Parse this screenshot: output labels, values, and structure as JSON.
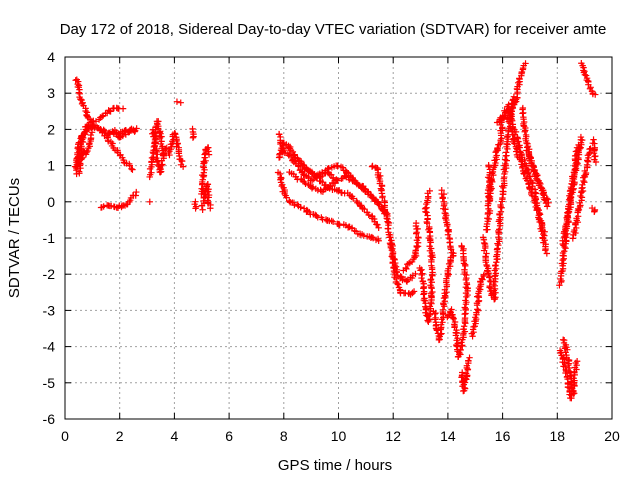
{
  "chart_data": {
    "type": "scatter",
    "title": "Day 172 of 2018, Sidereal Day-to-day VTEC variation (SDTVAR) for receiver amte",
    "xlabel": "GPS time / hours",
    "ylabel": "SDTVAR / TECUs",
    "xlim": [
      0,
      20
    ],
    "ylim": [
      -6,
      4
    ],
    "xticks": [
      "0",
      "2",
      "4",
      "6",
      "8",
      "10",
      "12",
      "14",
      "16",
      "18",
      "20"
    ],
    "yticks": [
      "-6",
      "-5",
      "-4",
      "-3",
      "-2",
      "-1",
      "0",
      "1",
      "2",
      "3",
      "4"
    ],
    "grid": true,
    "marker": "+",
    "color": "#ff0000",
    "series_tracks": [
      [
        [
          0.4,
          3.4
        ],
        [
          0.5,
          3.2
        ],
        [
          0.6,
          2.8
        ],
        [
          0.8,
          2.4
        ],
        [
          1.0,
          2.1
        ],
        [
          1.3,
          2.0
        ],
        [
          1.6,
          1.9
        ],
        [
          2.0,
          1.8
        ],
        [
          2.3,
          1.9
        ],
        [
          2.6,
          2.0
        ]
      ],
      [
        [
          0.4,
          1.0
        ],
        [
          0.5,
          1.5
        ],
        [
          0.6,
          1.8
        ],
        [
          0.8,
          2.0
        ],
        [
          1.0,
          2.1
        ],
        [
          1.3,
          2.0
        ],
        [
          1.6,
          1.7
        ],
        [
          1.9,
          1.4
        ],
        [
          2.2,
          1.1
        ],
        [
          2.5,
          0.9
        ]
      ],
      [
        [
          0.4,
          0.8
        ],
        [
          0.5,
          1.2
        ],
        [
          0.6,
          1.6
        ],
        [
          0.8,
          2.1
        ],
        [
          1.0,
          2.2
        ],
        [
          1.3,
          2.3
        ],
        [
          1.6,
          2.5
        ],
        [
          1.9,
          2.6
        ],
        [
          2.1,
          2.6
        ]
      ],
      [
        [
          0.5,
          0.8
        ],
        [
          0.6,
          1.2
        ],
        [
          0.7,
          1.4
        ],
        [
          0.8,
          1.3
        ],
        [
          0.9,
          1.6
        ],
        [
          1.0,
          1.9
        ]
      ],
      [
        [
          1.3,
          -0.15
        ],
        [
          1.6,
          -0.12
        ],
        [
          1.9,
          -0.15
        ],
        [
          2.1,
          -0.12
        ],
        [
          2.3,
          -0.05
        ],
        [
          2.5,
          0.15
        ],
        [
          2.6,
          0.25
        ]
      ],
      [
        [
          1.6,
          1.9
        ],
        [
          1.8,
          1.95
        ],
        [
          2.0,
          1.9
        ],
        [
          2.2,
          1.95
        ],
        [
          2.4,
          2.0
        ],
        [
          2.6,
          1.95
        ]
      ],
      [
        [
          3.1,
          0.7
        ],
        [
          3.2,
          1.2
        ],
        [
          3.3,
          1.8
        ],
        [
          3.4,
          2.2
        ],
        [
          3.5,
          1.8
        ],
        [
          3.6,
          1.3
        ]
      ],
      [
        [
          3.2,
          2.0
        ],
        [
          3.3,
          1.6
        ],
        [
          3.4,
          1.1
        ],
        [
          3.5,
          0.8
        ],
        [
          3.6,
          1.3
        ],
        [
          3.7,
          1.5
        ]
      ],
      [
        [
          3.8,
          1.3
        ],
        [
          3.9,
          1.6
        ],
        [
          4.0,
          1.9
        ],
        [
          4.1,
          1.6
        ],
        [
          4.2,
          1.2
        ],
        [
          4.3,
          1.0
        ]
      ],
      [
        [
          3.1,
          0.0
        ],
        [
          4.1,
          2.75
        ],
        [
          4.2,
          2.75
        ]
      ],
      [
        [
          4.7,
          2.0
        ],
        [
          4.7,
          1.8
        ],
        [
          4.75,
          0.0
        ],
        [
          4.8,
          -0.2
        ]
      ],
      [
        [
          5.0,
          0.2
        ],
        [
          5.05,
          0.7
        ],
        [
          5.1,
          1.1
        ],
        [
          5.15,
          1.4
        ],
        [
          5.2,
          1.5
        ],
        [
          5.25,
          1.3
        ]
      ],
      [
        [
          5.0,
          -0.2
        ],
        [
          5.1,
          0.1
        ],
        [
          5.2,
          0.5
        ],
        [
          5.25,
          0.0
        ],
        [
          5.3,
          -0.15
        ]
      ],
      [
        [
          7.8,
          1.9
        ],
        [
          7.9,
          1.6
        ],
        [
          8.0,
          1.4
        ],
        [
          8.2,
          1.3
        ],
        [
          8.4,
          1.1
        ],
        [
          8.6,
          0.9
        ],
        [
          8.8,
          0.7
        ],
        [
          9.0,
          0.6
        ],
        [
          9.3,
          0.7
        ],
        [
          9.6,
          0.8
        ],
        [
          9.9,
          0.6
        ]
      ],
      [
        [
          7.8,
          1.2
        ],
        [
          7.9,
          1.4
        ],
        [
          8.0,
          1.6
        ],
        [
          8.2,
          1.5
        ],
        [
          8.4,
          1.3
        ],
        [
          8.7,
          1.0
        ],
        [
          9.0,
          0.8
        ],
        [
          9.3,
          0.6
        ],
        [
          9.6,
          0.4
        ],
        [
          10.0,
          0.3
        ],
        [
          10.4,
          0.2
        ],
        [
          10.8,
          -0.1
        ],
        [
          11.2,
          -0.4
        ],
        [
          11.5,
          -0.7
        ]
      ],
      [
        [
          7.8,
          0.8
        ],
        [
          7.9,
          0.6
        ],
        [
          8.0,
          0.3
        ],
        [
          8.2,
          0.0
        ],
        [
          8.5,
          -0.1
        ],
        [
          8.8,
          -0.25
        ],
        [
          9.2,
          -0.4
        ],
        [
          9.6,
          -0.5
        ],
        [
          10.0,
          -0.6
        ],
        [
          10.4,
          -0.7
        ],
        [
          10.8,
          -0.9
        ],
        [
          11.2,
          -1.0
        ],
        [
          11.5,
          -1.05
        ]
      ],
      [
        [
          8.5,
          1.2
        ],
        [
          8.8,
          0.9
        ],
        [
          9.2,
          0.7
        ],
        [
          9.6,
          0.9
        ],
        [
          10.0,
          1.0
        ],
        [
          10.3,
          0.8
        ],
        [
          10.6,
          0.6
        ],
        [
          11.0,
          0.3
        ],
        [
          11.4,
          0.0
        ],
        [
          11.7,
          -0.3
        ]
      ],
      [
        [
          8.2,
          0.8
        ],
        [
          8.6,
          0.6
        ],
        [
          9.0,
          0.4
        ],
        [
          9.4,
          0.3
        ],
        [
          9.8,
          0.5
        ],
        [
          10.2,
          0.7
        ],
        [
          10.5,
          0.6
        ],
        [
          10.9,
          0.4
        ],
        [
          11.3,
          0.1
        ],
        [
          11.6,
          -0.2
        ],
        [
          11.8,
          -0.4
        ]
      ],
      [
        [
          11.2,
          1.0
        ],
        [
          11.4,
          0.95
        ],
        [
          11.5,
          0.7
        ],
        [
          11.6,
          0.3
        ],
        [
          11.7,
          -0.2
        ],
        [
          11.8,
          -0.6
        ],
        [
          11.9,
          -1.0
        ],
        [
          12.0,
          -1.5
        ],
        [
          12.1,
          -1.9
        ],
        [
          12.3,
          -2.1
        ],
        [
          12.5,
          -2.2
        ],
        [
          12.8,
          -2.0
        ]
      ],
      [
        [
          11.9,
          -1.0
        ],
        [
          12.0,
          -1.6
        ],
        [
          12.1,
          -2.2
        ],
        [
          12.3,
          -2.5
        ],
        [
          12.6,
          -2.55
        ],
        [
          12.8,
          -2.5
        ]
      ],
      [
        [
          12.4,
          -1.9
        ],
        [
          12.6,
          -1.7
        ],
        [
          12.8,
          -1.5
        ],
        [
          12.9,
          -1.2
        ],
        [
          12.85,
          -0.6
        ]
      ],
      [
        [
          13.0,
          -1.8
        ],
        [
          13.1,
          -2.4
        ],
        [
          13.2,
          -3.0
        ],
        [
          13.3,
          -3.3
        ],
        [
          13.4,
          -2.6
        ],
        [
          13.4,
          -1.5
        ],
        [
          13.3,
          -0.8
        ],
        [
          13.2,
          -0.2
        ],
        [
          13.3,
          0.3
        ]
      ],
      [
        [
          13.5,
          -3.0
        ],
        [
          13.6,
          -3.5
        ],
        [
          13.7,
          -3.8
        ],
        [
          13.8,
          -3.2
        ],
        [
          13.9,
          -2.6
        ],
        [
          14.0,
          -2.0
        ],
        [
          14.1,
          -1.6
        ],
        [
          14.2,
          -1.5
        ],
        [
          14.0,
          -0.8
        ],
        [
          13.9,
          -0.4
        ],
        [
          13.8,
          0.3
        ]
      ],
      [
        [
          14.0,
          -3.2
        ],
        [
          14.1,
          -3.0
        ],
        [
          14.2,
          -3.2
        ],
        [
          14.3,
          -3.6
        ],
        [
          14.35,
          -4.0
        ],
        [
          14.4,
          -4.3
        ],
        [
          14.5,
          -4.0
        ],
        [
          14.6,
          -3.5
        ],
        [
          14.7,
          -2.4
        ],
        [
          14.6,
          -1.5
        ],
        [
          14.5,
          -1.2
        ]
      ],
      [
        [
          14.5,
          -4.7
        ],
        [
          14.55,
          -5.0
        ],
        [
          14.6,
          -5.2
        ],
        [
          14.65,
          -4.9
        ],
        [
          14.7,
          -4.6
        ],
        [
          14.8,
          -4.3
        ]
      ],
      [
        [
          14.9,
          -3.7
        ],
        [
          15.0,
          -3.3
        ],
        [
          15.1,
          -3.0
        ],
        [
          15.1,
          -2.6
        ],
        [
          15.2,
          -2.2
        ],
        [
          15.3,
          -2.0
        ]
      ],
      [
        [
          15.3,
          -1.0
        ],
        [
          15.4,
          -1.6
        ],
        [
          15.5,
          -2.0
        ],
        [
          15.6,
          -2.6
        ],
        [
          15.7,
          -2.7
        ],
        [
          15.7,
          -2.2
        ],
        [
          15.8,
          -1.5
        ],
        [
          15.9,
          -0.5
        ],
        [
          16.0,
          0.3
        ],
        [
          16.1,
          1.0
        ],
        [
          16.2,
          1.8
        ],
        [
          16.3,
          2.5
        ],
        [
          16.4,
          2.9
        ]
      ],
      [
        [
          15.5,
          0.0
        ],
        [
          15.6,
          0.6
        ],
        [
          15.7,
          1.0
        ],
        [
          15.8,
          1.4
        ],
        [
          15.9,
          1.6
        ],
        [
          15.95,
          2.0
        ],
        [
          16.0,
          2.3
        ],
        [
          16.1,
          2.5
        ],
        [
          16.2,
          2.6
        ]
      ],
      [
        [
          15.4,
          -0.8
        ],
        [
          15.5,
          -0.3
        ],
        [
          15.5,
          0.4
        ],
        [
          15.5,
          1.0
        ]
      ],
      [
        [
          15.8,
          2.2
        ],
        [
          16.0,
          2.35
        ],
        [
          16.2,
          2.3
        ],
        [
          16.35,
          2.5
        ],
        [
          16.5,
          2.9
        ],
        [
          16.6,
          3.3
        ],
        [
          16.7,
          3.6
        ],
        [
          16.8,
          3.8
        ]
      ],
      [
        [
          16.3,
          2.0
        ],
        [
          16.4,
          1.7
        ],
        [
          16.6,
          1.2
        ],
        [
          16.8,
          0.8
        ],
        [
          17.0,
          0.4
        ],
        [
          17.2,
          0.0
        ],
        [
          17.4,
          -0.6
        ],
        [
          17.5,
          -1.0
        ],
        [
          17.6,
          -1.4
        ]
      ],
      [
        [
          16.2,
          2.7
        ],
        [
          16.3,
          2.4
        ],
        [
          16.5,
          1.8
        ],
        [
          16.7,
          1.3
        ],
        [
          16.9,
          0.9
        ],
        [
          17.1,
          0.5
        ],
        [
          17.3,
          -0.2
        ],
        [
          17.5,
          -0.8
        ]
      ],
      [
        [
          16.7,
          2.6
        ],
        [
          16.8,
          2.1
        ],
        [
          16.9,
          1.6
        ],
        [
          17.0,
          1.2
        ],
        [
          17.2,
          0.8
        ],
        [
          17.4,
          0.4
        ],
        [
          17.6,
          -0.1
        ]
      ],
      [
        [
          16.9,
          1.4
        ],
        [
          17.1,
          1.0
        ],
        [
          17.3,
          0.6
        ],
        [
          17.5,
          0.2
        ],
        [
          17.7,
          0.0
        ]
      ],
      [
        [
          18.1,
          -2.3
        ],
        [
          18.2,
          -1.7
        ],
        [
          18.3,
          -1.1
        ],
        [
          18.4,
          -0.4
        ],
        [
          18.5,
          0.1
        ],
        [
          18.6,
          0.5
        ],
        [
          18.7,
          1.0
        ],
        [
          18.8,
          1.4
        ],
        [
          18.9,
          1.8
        ]
      ],
      [
        [
          18.2,
          -1.2
        ],
        [
          18.3,
          -0.7
        ],
        [
          18.4,
          -0.3
        ],
        [
          18.5,
          0.3
        ],
        [
          18.6,
          0.8
        ],
        [
          18.7,
          1.3
        ],
        [
          18.8,
          1.6
        ]
      ],
      [
        [
          18.6,
          -1.0
        ],
        [
          18.7,
          -0.6
        ],
        [
          18.8,
          -0.2
        ],
        [
          18.9,
          0.3
        ],
        [
          19.0,
          0.7
        ],
        [
          19.1,
          1.1
        ],
        [
          19.2,
          1.5
        ]
      ],
      [
        [
          18.1,
          -4.1
        ],
        [
          18.2,
          -4.3
        ],
        [
          18.3,
          -4.7
        ],
        [
          18.4,
          -5.1
        ],
        [
          18.5,
          -5.4
        ],
        [
          18.6,
          -5.1
        ],
        [
          18.7,
          -4.4
        ]
      ],
      [
        [
          18.2,
          -3.8
        ],
        [
          18.3,
          -4.0
        ],
        [
          18.4,
          -4.4
        ],
        [
          18.5,
          -4.9
        ],
        [
          18.6,
          -5.3
        ]
      ],
      [
        [
          18.9,
          3.8
        ],
        [
          19.0,
          3.6
        ],
        [
          19.1,
          3.35
        ],
        [
          19.3,
          3.0
        ],
        [
          19.4,
          2.95
        ]
      ],
      [
        [
          19.3,
          1.7
        ],
        [
          19.35,
          1.4
        ],
        [
          19.4,
          1.1
        ]
      ],
      [
        [
          19.3,
          -0.2
        ],
        [
          19.35,
          -0.25
        ],
        [
          19.4,
          -0.2
        ]
      ]
    ]
  }
}
